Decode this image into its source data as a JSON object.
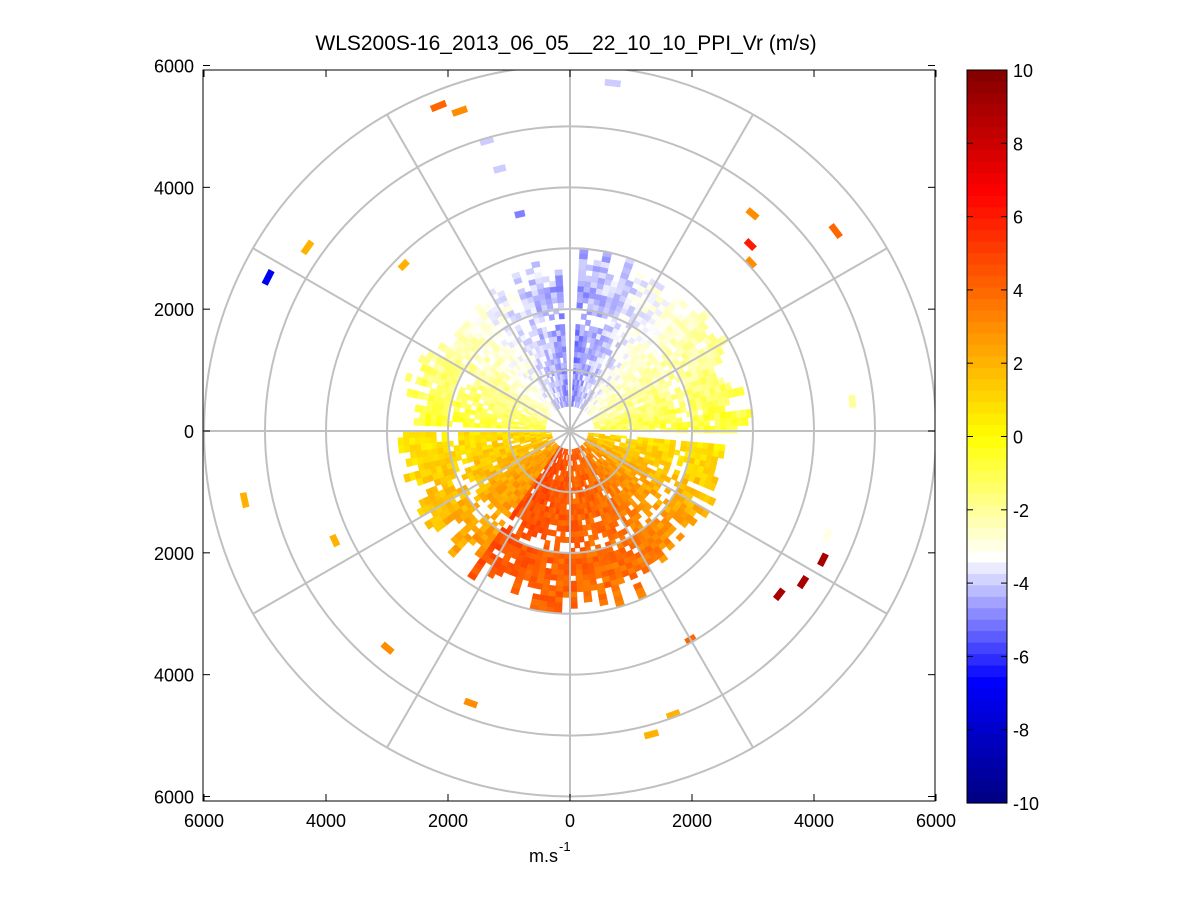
{
  "chart_data": {
    "type": "heatmap",
    "subtype": "polar-ppi",
    "title": "WLS200S-16_2013_06_05__22_10_10_PPI_Vr (m/s)",
    "xlabel": "m.s",
    "xlabel_superscript": "-1",
    "ylabel": "",
    "xlim": [
      -6000,
      6000
    ],
    "ylim": [
      -6000,
      6000
    ],
    "x_tick_values": [
      -6000,
      -4000,
      -2000,
      0,
      2000,
      4000,
      6000
    ],
    "x_tick_labels": [
      "6000",
      "4000",
      "2000",
      "0",
      "2000",
      "4000",
      "6000"
    ],
    "y_tick_values": [
      6000,
      4000,
      2000,
      0,
      -2000,
      -4000,
      -6000
    ],
    "y_tick_labels": [
      "6000",
      "4000",
      "2000",
      "0",
      "2000",
      "4000",
      "6000"
    ],
    "range_rings": [
      1000,
      2000,
      3000,
      4000,
      5000,
      6000
    ],
    "azimuth_spokes_deg": [
      0,
      30,
      60,
      90,
      120,
      150,
      180,
      210,
      240,
      270,
      300,
      330
    ],
    "colorbar": {
      "min": -10,
      "max": 10,
      "tick_values": [
        10,
        8,
        6,
        4,
        2,
        0,
        -2,
        -4,
        -6,
        -8,
        -10
      ],
      "tick_labels": [
        "10",
        "8",
        "6",
        "4",
        "2",
        "0",
        "-2",
        "-4",
        "-6",
        "-8",
        "-10"
      ],
      "colors": [
        "#000080",
        "#0000ff",
        "#ffffff",
        "#ffff00",
        "#ff8000",
        "#ff0000",
        "#800000"
      ]
    },
    "field": {
      "description_values": "radial velocity sectors (azimuth deg clockwise from north, range m, velocity m/s)",
      "sectors": [
        {
          "az": [
            -88,
            -3
          ],
          "r": [
            400,
            2800
          ],
          "v": [
            -1,
            -5
          ]
        },
        {
          "az": [
            3,
            90
          ],
          "r": [
            400,
            3000
          ],
          "v": [
            -5,
            -1
          ]
        },
        {
          "az": [
            95,
            150
          ],
          "r": [
            300,
            2600
          ],
          "v": [
            1,
            4
          ]
        },
        {
          "az": [
            150,
            215
          ],
          "r": [
            300,
            3000
          ],
          "v": [
            4,
            5
          ]
        },
        {
          "az": [
            215,
            268
          ],
          "r": [
            300,
            2800
          ],
          "v": [
            3,
            1
          ]
        }
      ],
      "scatter_gates": [
        {
          "az": -22,
          "r": 5700,
          "v": 4
        },
        {
          "az": -19,
          "r": 5500,
          "v": 3
        },
        {
          "az": -16,
          "r": 4900,
          "v": -4
        },
        {
          "az": -15,
          "r": 4400,
          "v": -4
        },
        {
          "az": -13,
          "r": 3600,
          "v": -5
        },
        {
          "az": 7,
          "r": 5700,
          "v": -4
        },
        {
          "az": 40,
          "r": 4600,
          "v": 3
        },
        {
          "az": 44,
          "r": 4200,
          "v": 6
        },
        {
          "az": 47,
          "r": 4000,
          "v": 3
        },
        {
          "az": 53,
          "r": 5400,
          "v": 4
        },
        {
          "az": -63,
          "r": 5500,
          "v": -7
        },
        {
          "az": -55,
          "r": 5200,
          "v": 2
        },
        {
          "az": -45,
          "r": 3800,
          "v": 2
        },
        {
          "az": 84,
          "r": 4600,
          "v": -2
        },
        {
          "az": 112,
          "r": 4500,
          "v": -3
        },
        {
          "az": 117,
          "r": 4600,
          "v": 9
        },
        {
          "az": 123,
          "r": 4500,
          "v": 9
        },
        {
          "az": 128,
          "r": 4300,
          "v": 9
        },
        {
          "az": 150,
          "r": 3900,
          "v": 4
        },
        {
          "az": 160,
          "r": 4900,
          "v": 2
        },
        {
          "az": 165,
          "r": 5100,
          "v": 2
        },
        {
          "az": 200,
          "r": 4700,
          "v": 3
        },
        {
          "az": 220,
          "r": 4600,
          "v": 3
        },
        {
          "az": 245,
          "r": 4200,
          "v": 2
        },
        {
          "az": 258,
          "r": 5400,
          "v": 2
        }
      ]
    }
  }
}
